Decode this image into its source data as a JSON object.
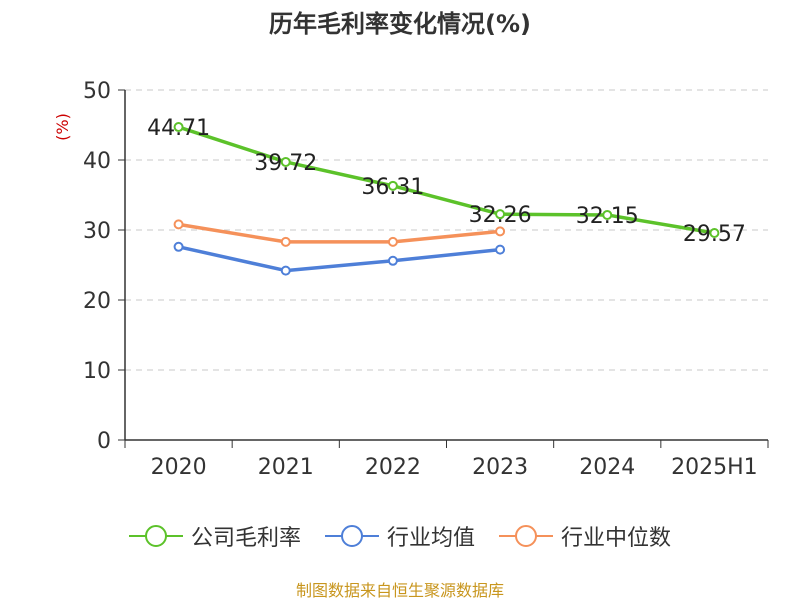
{
  "chart_data": {
    "type": "line",
    "title": "历年毛利率变化情况(%)",
    "ylabel": "(%)",
    "xlabel": "",
    "categories": [
      "2020",
      "2021",
      "2022",
      "2023",
      "2024",
      "2025H1"
    ],
    "ylim": [
      0,
      50
    ],
    "yticks": [
      0,
      10,
      20,
      30,
      40,
      50
    ],
    "grid": true,
    "legend_position": "bottom",
    "series": [
      {
        "name": "公司毛利率",
        "color": "#5cc22a",
        "values": [
          44.71,
          39.72,
          36.31,
          32.26,
          32.15,
          29.57
        ],
        "labels": [
          "44.71",
          "39.72",
          "36.31",
          "32.26",
          "32.15",
          "29.57"
        ]
      },
      {
        "name": "行业均值",
        "color": "#4e7fd8",
        "values": [
          27.6,
          24.2,
          25.6,
          27.2,
          null,
          null
        ],
        "labels": []
      },
      {
        "name": "行业中位数",
        "color": "#f5915a",
        "values": [
          30.8,
          28.3,
          28.3,
          29.8,
          null,
          null
        ],
        "labels": []
      }
    ]
  },
  "source": "制图数据来自恒生聚源数据库"
}
